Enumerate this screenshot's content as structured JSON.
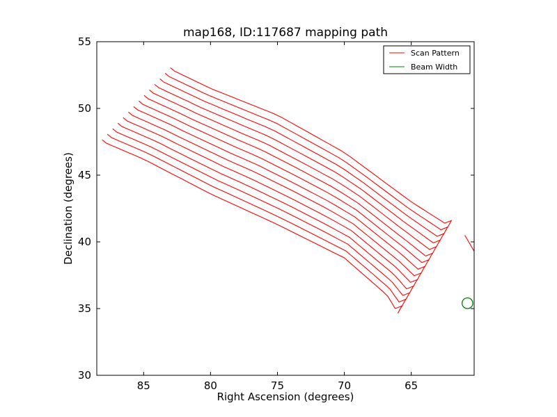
{
  "chart_data": {
    "type": "line",
    "title": "map168, ID:117687 mapping path",
    "xlabel": "Right Ascension (degrees)",
    "ylabel": "Declination (degrees)",
    "xlim": [
      88.5,
      60.3
    ],
    "ylim": [
      30,
      55
    ],
    "x_ticks": [
      85,
      80,
      75,
      70,
      65
    ],
    "y_ticks": [
      30,
      35,
      40,
      45,
      50,
      55
    ],
    "x_tick_labels": [
      "85",
      "80",
      "75",
      "70",
      "65"
    ],
    "y_tick_labels": [
      "30",
      "35",
      "40",
      "45",
      "50",
      "55"
    ],
    "grid": false,
    "legend_position": "top-right",
    "legend": [
      "Scan Pattern",
      "Beam Width"
    ],
    "scan_pattern": {
      "name": "Scan Pattern",
      "color": "#ff0000",
      "scan_lines": 14,
      "first_line": [
        [
          87.8,
          47.4
        ],
        [
          85.0,
          46.2
        ],
        [
          80.0,
          43.6
        ],
        [
          75.0,
          41.3
        ],
        [
          70.0,
          38.8
        ],
        [
          66.8,
          36.0
        ],
        [
          66.2,
          35.0
        ]
      ],
      "last_line": [
        [
          82.7,
          52.8
        ],
        [
          80.0,
          51.5
        ],
        [
          75.0,
          49.5
        ],
        [
          70.0,
          46.7
        ],
        [
          65.0,
          43.0
        ],
        [
          62.5,
          41.4
        ]
      ],
      "far_end_tip": [
        [
          61.0,
          40.5
        ],
        [
          60.3,
          39.3
        ]
      ]
    },
    "beam_width": {
      "name": "Beam Width",
      "color": "#008000",
      "center": [
        60.8,
        35.4
      ],
      "radius_deg": 0.4
    }
  }
}
